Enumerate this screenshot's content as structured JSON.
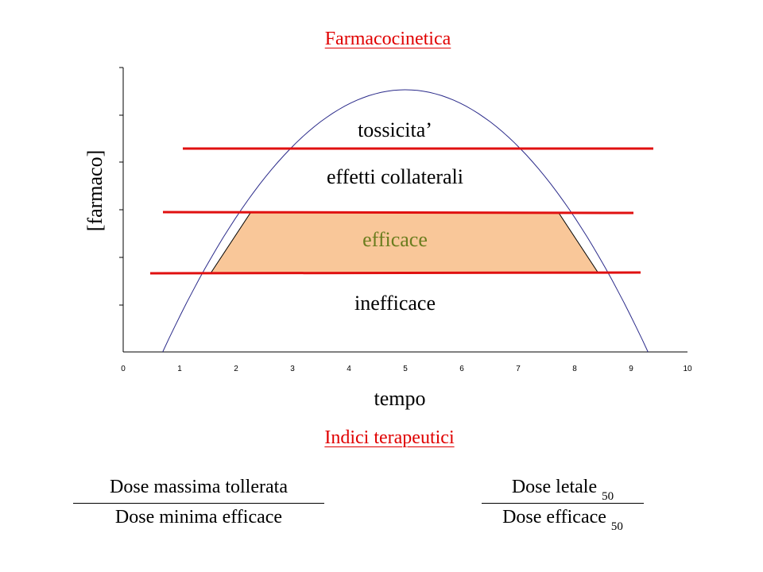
{
  "slide_title": "Farmacocinetica",
  "section_title": "Indici terapeutici",
  "chart": {
    "ylabel": "[farmaco]",
    "xlabel": "tempo",
    "xticks": [
      "0",
      "1",
      "2",
      "3",
      "4",
      "5",
      "6",
      "7",
      "8",
      "9",
      "10"
    ],
    "regions": {
      "toxic": "tossicita’",
      "side_effects": "effetti collaterali",
      "effective": "efficace",
      "ineffective": "inefficace"
    },
    "colors": {
      "threshold_line": "#e01010",
      "curve": "#2a2a8a",
      "effective_fill": "#f9c799",
      "effective_text": "#6b7d1e"
    }
  },
  "chart_data": {
    "type": "line",
    "xlim": [
      0,
      10
    ],
    "x_tick_labels": [
      "0",
      "1",
      "2",
      "3",
      "4",
      "5",
      "6",
      "7",
      "8",
      "9",
      "10"
    ],
    "xlabel": "tempo",
    "ylabel": "[farmaco]",
    "curve_shape": "parabola",
    "curve_peak_x": 5,
    "grid": false,
    "shaded_band": "efficace"
  },
  "formulas": {
    "therapeutic_index_1": {
      "numerator": "Dose massima tollerata",
      "denominator": "Dose minima efficace"
    },
    "therapeutic_index_2": {
      "numerator": "Dose letale",
      "numerator_sub": "50",
      "denominator": "Dose efficace",
      "denominator_sub": "50"
    }
  }
}
